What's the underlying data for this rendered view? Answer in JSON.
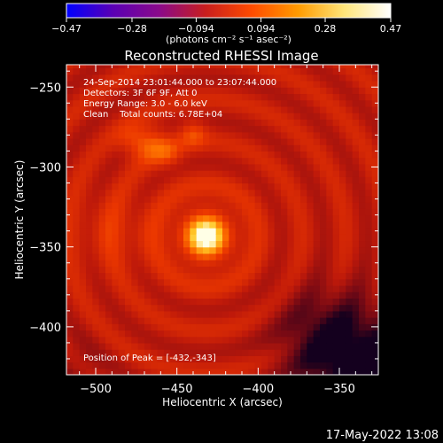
{
  "chart_data": {
    "type": "heatmap",
    "title": "Reconstructed RHESSI Image",
    "xlabel": "Heliocentric X (arcsec)",
    "ylabel": "Heliocentric Y (arcsec)",
    "xlim": [
      -518,
      -326
    ],
    "ylim": [
      -430,
      -236
    ],
    "x_ticks": [
      -500,
      -450,
      -400,
      -350
    ],
    "y_ticks": [
      -250,
      -300,
      -350,
      -400
    ],
    "x_tick_labels": [
      "−500",
      "−450",
      "−400",
      "−350"
    ],
    "y_tick_labels": [
      "−250",
      "−300",
      "−350",
      "−400"
    ],
    "colorbar": {
      "min": -0.47,
      "max": 0.47,
      "ticks": [
        -0.47,
        -0.28,
        -0.094,
        0.094,
        0.28,
        0.47
      ],
      "tick_labels": [
        "−0.47",
        "−0.28",
        "−0.094",
        "0.094",
        "0.28",
        "0.47"
      ],
      "unit_label": "(photons cm⁻² s⁻¹ asec⁻²)",
      "colormap": [
        "#0000ff",
        "#5a00b4",
        "#8a0a8a",
        "#c81e1e",
        "#ff4b00",
        "#ff9b00",
        "#ffe67a",
        "#ffffff"
      ]
    },
    "annotations": {
      "time_range": "24-Sep-2014 23:01:44.000 to 23:07:44.000",
      "detectors": "Detectors: 3F 6F 9F, Att 0",
      "energy_range": "Energy Range: 3.0 - 6.0 keV",
      "method_counts": "Clean    Total counts: 6.78E+04",
      "peak_position": "Position of Peak = [-432,-343]"
    },
    "peak": {
      "x": -432,
      "y": -343
    },
    "secondary_sources": [
      {
        "x": -466,
        "y": -285
      },
      {
        "x": -440,
        "y": -278
      }
    ]
  },
  "footer": {
    "timestamp": "17-May-2022 13:08"
  }
}
